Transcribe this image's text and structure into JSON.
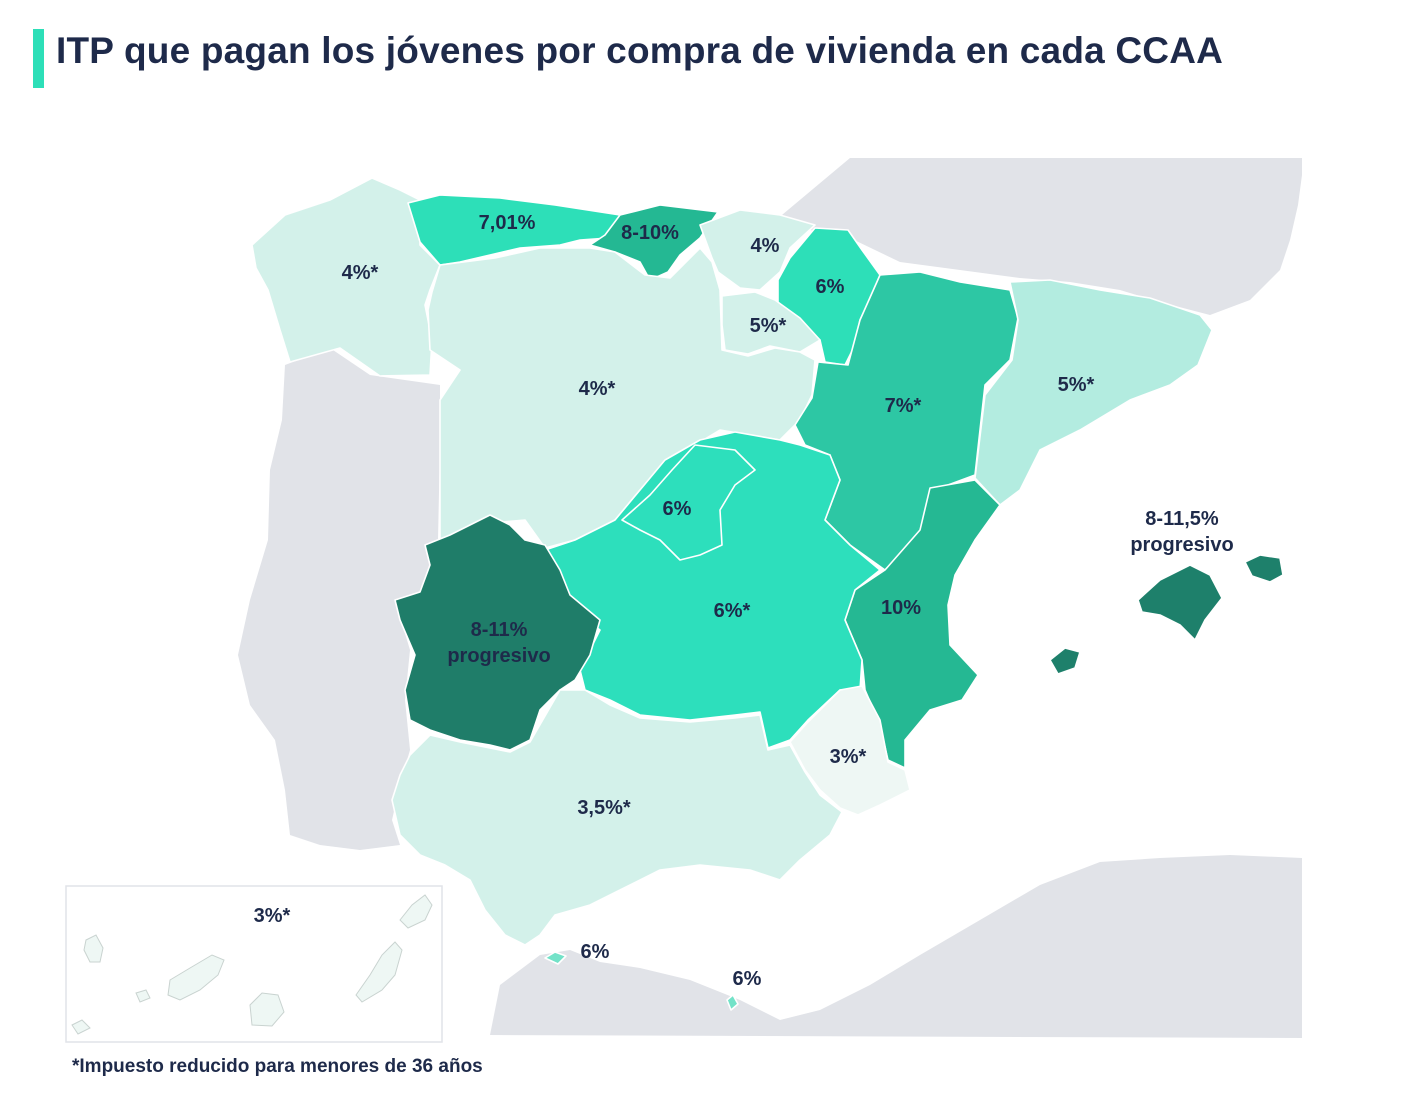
{
  "title": "ITP que pagan los jóvenes por compra de vivienda en cada CCAA",
  "footnote": "*Impuesto reducido para menores de 36 años",
  "colors": {
    "accent": "#2ddfb8",
    "land_other": "#e1e3e8",
    "lightest": "#eef7f4",
    "light": "#d3f1ea",
    "light2": "#b3ece0",
    "mid": "#2dc7a4",
    "mid2": "#25b893",
    "bright": "#2ddfbc",
    "dark": "#1e806b",
    "darkest": "#1f7d69",
    "text": "#1e2a4a"
  },
  "regions": {
    "galicia": "4%*",
    "asturias": "7,01%",
    "cantabria": "8-10%",
    "pais_vasco": "4%",
    "navarra": "6%",
    "la_rioja": "5%*",
    "castilla_leon": "4%*",
    "aragon": "7%*",
    "cataluna": "5%*",
    "madrid": "6%",
    "castilla_la_mancha": "6%*",
    "extremadura_line1": "8-11%",
    "extremadura_line2": "progresivo",
    "comunidad_valenciana": "10%",
    "baleares_line1": "8-11,5%",
    "baleares_line2": "progresivo",
    "murcia": "3%*",
    "andalucia": "3,5%*",
    "canarias": "3%*",
    "ceuta": "6%",
    "melilla": "6%"
  }
}
